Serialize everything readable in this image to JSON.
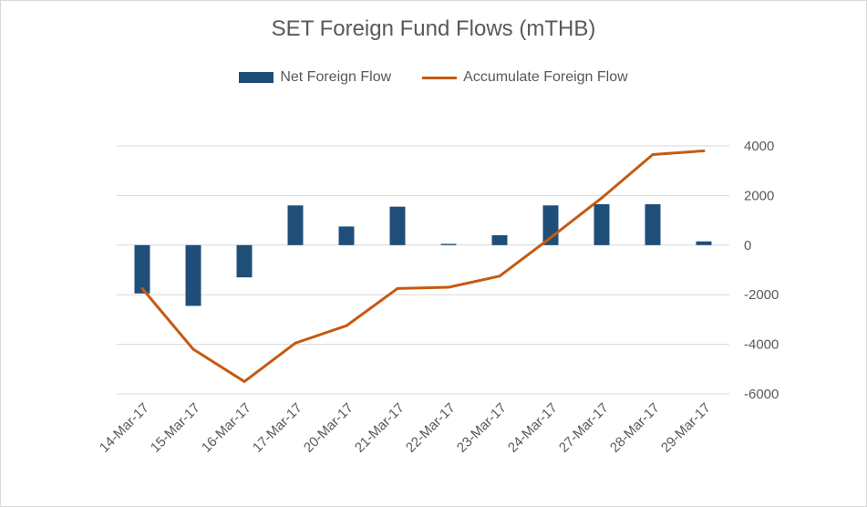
{
  "chart_data": {
    "type": "bar+line",
    "title": "SET Foreign Fund Flows (mTHB)",
    "categories": [
      "14-Mar-17",
      "15-Mar-17",
      "16-Mar-17",
      "17-Mar-17",
      "20-Mar-17",
      "21-Mar-17",
      "22-Mar-17",
      "23-Mar-17",
      "24-Mar-17",
      "27-Mar-17",
      "28-Mar-17",
      "29-Mar-17"
    ],
    "series": [
      {
        "name": "Net Foreign Flow",
        "kind": "bar",
        "color": "#1f4e79",
        "values": [
          -1950,
          -2450,
          -1300,
          1600,
          750,
          1550,
          50,
          400,
          1600,
          1650,
          1650,
          150
        ]
      },
      {
        "name": "Accumulate Foreign Flow",
        "kind": "line",
        "color": "#c55a11",
        "values": [
          -1750,
          -4200,
          -5500,
          -3950,
          -3250,
          -1750,
          -1700,
          -1250,
          300,
          1900,
          3650,
          3800
        ]
      }
    ],
    "y_axis": {
      "position": "right",
      "min": -6000,
      "max": 4000,
      "ticks": [
        4000,
        2000,
        0,
        -2000,
        -4000,
        -6000
      ]
    },
    "xlabel": "",
    "ylabel": "",
    "grid": true,
    "legend": "top"
  }
}
